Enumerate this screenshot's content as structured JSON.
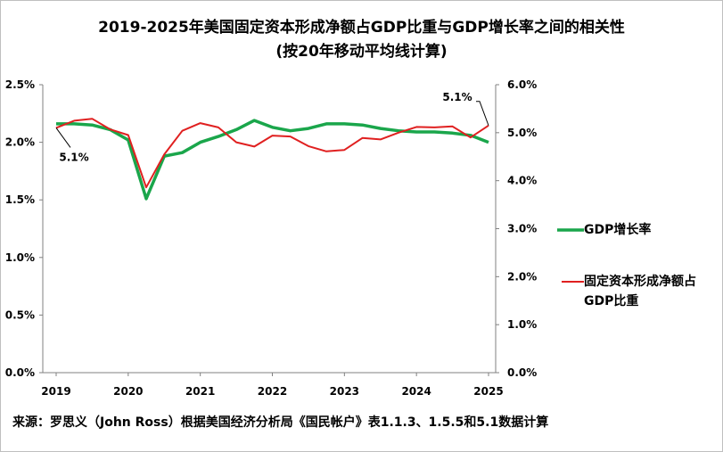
{
  "title_line1": "2019-2025年美国固定资本形成净额占GDP比重与GDP增长率之间的相关性",
  "title_line2": "(按20年移动平均线计算)",
  "source": "来源：罗思义（John Ross）根据美国经济分析局《国民帐户》表1.1.3、1.5.5和5.1数据计算",
  "chart_data": {
    "type": "line",
    "x_ticks": [
      "2019",
      "2020",
      "2021",
      "2022",
      "2023",
      "2024",
      "2025"
    ],
    "x_range": [
      2019,
      2025
    ],
    "y_left": {
      "range": [
        0,
        2.5
      ],
      "ticks": [
        "0.0%",
        "0.5%",
        "1.0%",
        "1.5%",
        "2.0%",
        "2.5%"
      ]
    },
    "y_right": {
      "range": [
        0,
        6
      ],
      "ticks": [
        "0.0%",
        "1.0%",
        "2.0%",
        "3.0%",
        "4.0%",
        "5.0%",
        "6.0%"
      ]
    },
    "legend_placement": "right",
    "series": [
      {
        "name": "GDP增长率",
        "axis": "left",
        "color": "#1aa64b",
        "x": [
          2019.0,
          2019.25,
          2019.5,
          2019.75,
          2020.0,
          2020.25,
          2020.5,
          2020.75,
          2021.0,
          2021.25,
          2021.5,
          2021.75,
          2022.0,
          2022.25,
          2022.5,
          2022.75,
          2023.0,
          2023.25,
          2023.5,
          2023.75,
          2024.0,
          2024.25,
          2024.5,
          2024.75,
          2025.0
        ],
        "values": [
          2.16,
          2.16,
          2.15,
          2.11,
          2.02,
          1.51,
          1.88,
          1.91,
          2.0,
          2.05,
          2.11,
          2.19,
          2.13,
          2.1,
          2.12,
          2.16,
          2.16,
          2.15,
          2.12,
          2.1,
          2.09,
          2.09,
          2.08,
          2.06,
          2.0
        ]
      },
      {
        "name": "固定资本形成净额占GDP比重",
        "axis": "right",
        "color": "#e02020",
        "x": [
          2019.0,
          2019.25,
          2019.5,
          2019.75,
          2020.0,
          2020.25,
          2020.5,
          2020.75,
          2021.0,
          2021.25,
          2021.5,
          2021.75,
          2022.0,
          2022.25,
          2022.5,
          2022.75,
          2023.0,
          2023.25,
          2023.5,
          2023.75,
          2024.0,
          2024.25,
          2024.5,
          2024.75,
          2025.0
        ],
        "values": [
          5.1,
          5.25,
          5.29,
          5.07,
          4.95,
          3.86,
          4.55,
          5.04,
          5.2,
          5.11,
          4.8,
          4.71,
          4.94,
          4.92,
          4.72,
          4.61,
          4.64,
          4.89,
          4.86,
          5.0,
          5.12,
          5.11,
          5.13,
          4.9,
          5.15
        ]
      }
    ],
    "annotations": [
      {
        "text": "5.1%",
        "x": 2019.0,
        "series": 1
      },
      {
        "text": "5.1%",
        "x": 2025.0,
        "series": 1
      }
    ],
    "legend": [
      "GDP增长率",
      "固定资本形成净额占GDP比重"
    ]
  }
}
